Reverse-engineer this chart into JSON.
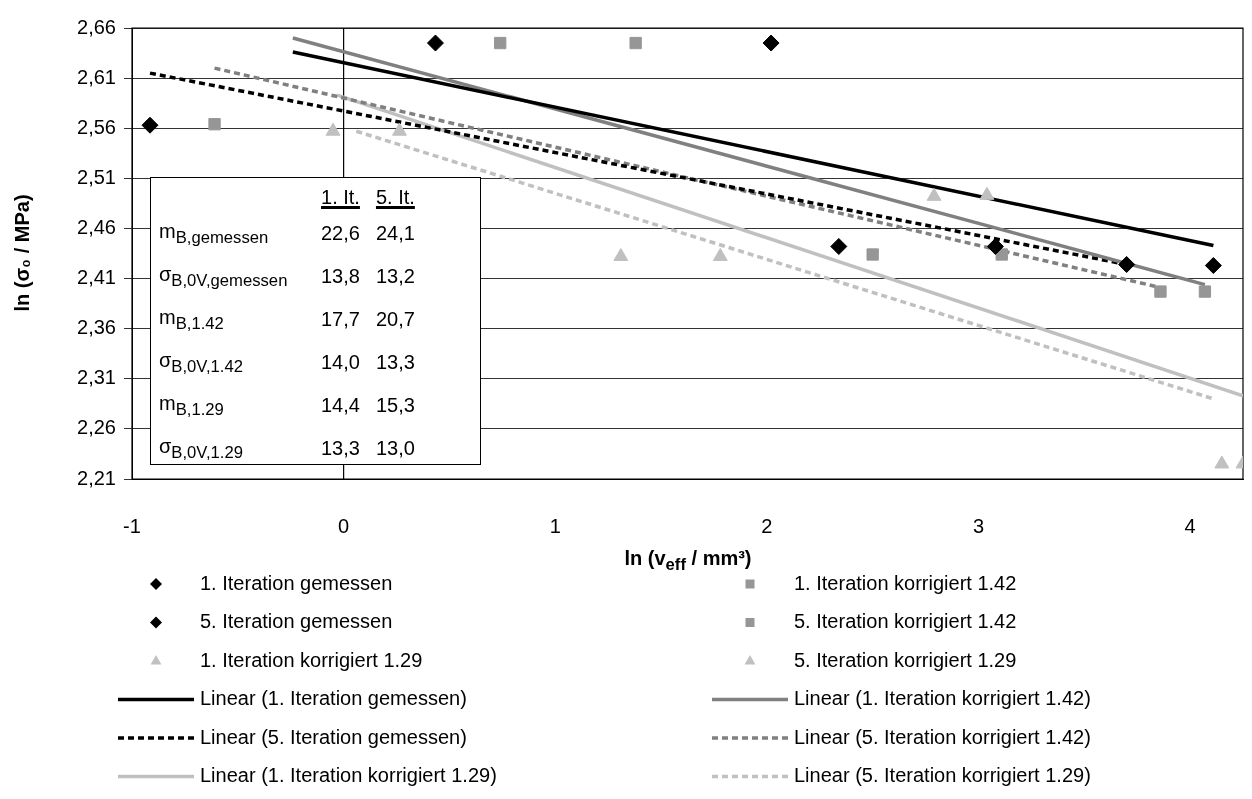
{
  "chart_data": {
    "type": "scatter",
    "xlabel": "ln (v$_{eff}$ / mm³)",
    "ylabel": "ln (σ₀ / MPa)",
    "xlim": [
      -1,
      4.25
    ],
    "xticks": [
      -1,
      0,
      1,
      2,
      3,
      4
    ],
    "ylim": [
      2.21,
      2.66
    ],
    "yticks": [
      {
        "value": 2.21,
        "label": "2,21"
      },
      {
        "value": 2.26,
        "label": "2,26"
      },
      {
        "value": 2.31,
        "label": "2,31"
      },
      {
        "value": 2.36,
        "label": "2,36"
      },
      {
        "value": 2.41,
        "label": "2,41"
      },
      {
        "value": 2.46,
        "label": "2,46"
      },
      {
        "value": 2.51,
        "label": "2,51"
      },
      {
        "value": 2.56,
        "label": "2,56"
      },
      {
        "value": 2.61,
        "label": "2,61"
      },
      {
        "value": 2.66,
        "label": "2,66"
      }
    ],
    "grid": "y",
    "legend": "bottom",
    "ref_lines": [
      {
        "axis": "x",
        "value": 0,
        "color": "#000000"
      }
    ],
    "annotations": [
      "1. It.",
      "5. It.",
      "m$_{B,gemessen}$",
      "22,6",
      "24,1",
      "σ$_{B,0V,gemessen}$",
      "13,8",
      "13,2",
      "m$_{B,1.42}$",
      "17,7",
      "20,7",
      "σ$_{B,0V,1.42}$",
      "14,0",
      "13,3",
      "m$_{B,1.29}$",
      "14,4",
      "15,3",
      "σ$_{B,0V,1.29}$",
      "13,3",
      "13,0"
    ],
    "series": [
      {
        "name": "1. Iteration gemessen",
        "type": "scatter",
        "marker": "diamond",
        "color": "#000000",
        "x": [
          2.02,
          3.08,
          4.11
        ],
        "values": [
          2.645,
          2.442,
          2.423
        ]
      },
      {
        "name": "1. Iteration korrigiert 1.42",
        "type": "scatter",
        "marker": "square",
        "color": "#969696",
        "x": [
          1.38,
          3.11,
          4.07
        ],
        "values": [
          2.645,
          2.434,
          2.397
        ]
      },
      {
        "name": "5. Iteration gemessen",
        "type": "scatter",
        "marker": "diamond",
        "color": "#000000",
        "x": [
          -0.915,
          0.434,
          2.34,
          3.7
        ],
        "values": [
          2.563,
          2.645,
          2.442,
          2.424
        ]
      },
      {
        "name": "5. Iteration korrigiert 1.42",
        "type": "scatter",
        "marker": "square",
        "color": "#969696",
        "x": [
          -0.61,
          0.74,
          2.5,
          3.86
        ],
        "values": [
          2.564,
          2.645,
          2.434,
          2.397
        ]
      },
      {
        "name": "1. Iteration korrigiert 1.29",
        "type": "scatter",
        "marker": "triangle",
        "color": "#c0c0c0",
        "x": [
          0.264,
          1.78,
          3.04,
          4.25
        ],
        "values": [
          2.557,
          2.432,
          2.493,
          2.225
        ]
      },
      {
        "name": "5. Iteration korrigiert 1.29",
        "type": "scatter",
        "marker": "triangle",
        "color": "#c0c0c0",
        "x": [
          -0.05,
          1.31,
          2.79,
          4.15
        ],
        "values": [
          2.557,
          2.432,
          2.492,
          2.225
        ]
      },
      {
        "name": "Linear (1. Iteration gemessen)",
        "type": "line",
        "marker": "none",
        "line_style": "solid",
        "color": "#000000",
        "x": [
          -0.24,
          4.11
        ],
        "values": [
          2.636,
          2.443
        ]
      },
      {
        "name": "Linear (1. Iteration korrigiert 1.42)",
        "type": "line",
        "marker": "none",
        "line_style": "solid",
        "color": "#808080",
        "x": [
          -0.24,
          4.07
        ],
        "values": [
          2.65,
          2.404
        ]
      },
      {
        "name": "Linear (5. Iteration gemessen)",
        "type": "line",
        "marker": "none",
        "line_style": "dashed",
        "color": "#000000",
        "x": [
          -0.915,
          3.7
        ],
        "values": [
          2.615,
          2.424
        ]
      },
      {
        "name": "Linear (5. Iteration korrigiert 1.42)",
        "type": "line",
        "marker": "none",
        "line_style": "dashed",
        "color": "#808080",
        "x": [
          -0.61,
          3.86
        ],
        "values": [
          2.62,
          2.401
        ]
      },
      {
        "name": "Linear (1. Iteration korrigiert 1.29)",
        "type": "line",
        "marker": "none",
        "line_style": "solid",
        "color": "#c0c0c0",
        "x": [
          -0.03,
          4.25
        ],
        "values": [
          2.593,
          2.293
        ]
      },
      {
        "name": "Linear (5. Iteration korrigiert 1.29)",
        "type": "line",
        "marker": "none",
        "line_style": "dashed",
        "color": "#c0c0c0",
        "x": [
          0.06,
          4.11
        ],
        "values": [
          2.557,
          2.29
        ]
      }
    ]
  }
}
